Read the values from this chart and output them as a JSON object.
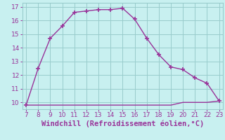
{
  "x": [
    7,
    8,
    9,
    10,
    11,
    12,
    13,
    14,
    15,
    16,
    17,
    18,
    19,
    20,
    21,
    22,
    23
  ],
  "y_main": [
    9.8,
    12.5,
    14.7,
    15.6,
    16.6,
    16.7,
    16.8,
    16.8,
    16.9,
    16.1,
    14.7,
    13.5,
    12.6,
    12.4,
    11.8,
    11.4,
    10.1
  ],
  "y_bottom": [
    9.8,
    9.8,
    9.8,
    9.8,
    9.8,
    9.8,
    9.8,
    9.8,
    9.8,
    9.8,
    9.8,
    9.8,
    9.8,
    10.0,
    10.0,
    10.0,
    10.1
  ],
  "line_color": "#993399",
  "marker": "+",
  "marker_size": 4,
  "marker_lw": 1.2,
  "line_width": 1.0,
  "bg_color": "#c8f0f0",
  "grid_color": "#99cccc",
  "xlabel": "Windchill (Refroidissement éolien,°C)",
  "xlabel_color": "#993399",
  "xlabel_fontsize": 7.5,
  "xlim_min": 6.7,
  "xlim_max": 23.3,
  "ylim_min": 9.5,
  "ylim_max": 17.3,
  "yticks": [
    10,
    11,
    12,
    13,
    14,
    15,
    16,
    17
  ],
  "xticks": [
    7,
    8,
    9,
    10,
    11,
    12,
    13,
    14,
    15,
    16,
    17,
    18,
    19,
    20,
    21,
    22,
    23
  ],
  "tick_fontsize": 6.5,
  "tick_color": "#993399"
}
